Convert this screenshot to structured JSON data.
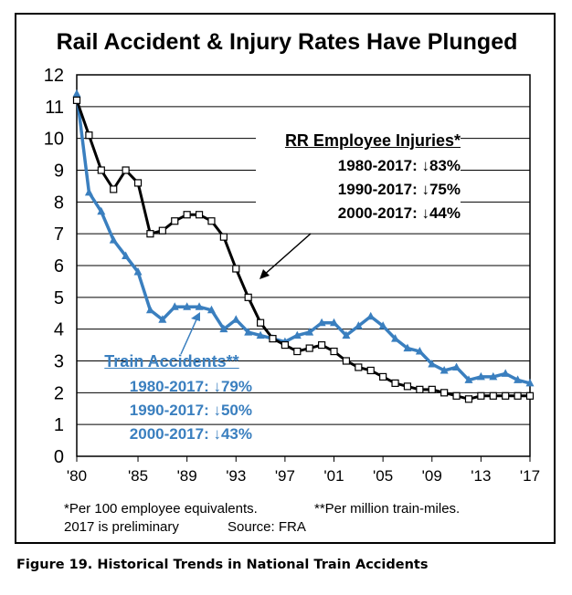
{
  "chart_data": {
    "type": "line",
    "title": "Rail Accident & Injury Rates Have Plunged",
    "xlabel": "",
    "ylabel": "",
    "xlim": [
      1980,
      2017
    ],
    "ylim": [
      0,
      12
    ],
    "y_ticks": [
      0,
      1,
      2,
      3,
      4,
      5,
      6,
      7,
      8,
      9,
      10,
      11,
      12
    ],
    "x_ticks": [
      {
        "value": 1980,
        "label": "'80"
      },
      {
        "value": 1985,
        "label": "'85"
      },
      {
        "value": 1989,
        "label": "'89"
      },
      {
        "value": 1993,
        "label": "'93"
      },
      {
        "value": 1997,
        "label": "'97"
      },
      {
        "value": 2001,
        "label": "'01"
      },
      {
        "value": 2005,
        "label": "'05"
      },
      {
        "value": 2009,
        "label": "'09"
      },
      {
        "value": 2013,
        "label": "'13"
      },
      {
        "value": 2017,
        "label": "'17"
      }
    ],
    "grid": true,
    "x": [
      1980,
      1981,
      1982,
      1983,
      1984,
      1985,
      1986,
      1987,
      1988,
      1989,
      1990,
      1991,
      1992,
      1993,
      1994,
      1995,
      1996,
      1997,
      1998,
      1999,
      2000,
      2001,
      2002,
      2003,
      2004,
      2005,
      2006,
      2007,
      2008,
      2009,
      2010,
      2011,
      2012,
      2013,
      2014,
      2015,
      2016,
      2017
    ],
    "series": [
      {
        "name": "RR Employee Injuries",
        "color": "#000000",
        "marker": "open-square",
        "values": [
          11.2,
          10.1,
          9.0,
          8.4,
          9.0,
          8.6,
          7.0,
          7.1,
          7.4,
          7.6,
          7.6,
          7.4,
          6.9,
          5.9,
          5.0,
          4.2,
          3.7,
          3.5,
          3.3,
          3.4,
          3.5,
          3.3,
          3.0,
          2.8,
          2.7,
          2.5,
          2.3,
          2.2,
          2.1,
          2.1,
          2.0,
          1.9,
          1.8,
          1.9,
          1.9,
          1.9,
          1.9,
          1.9
        ]
      },
      {
        "name": "Train Accidents",
        "color": "#3a7fbf",
        "marker": "triangle",
        "values": [
          11.4,
          8.3,
          7.7,
          6.8,
          6.3,
          5.8,
          4.6,
          4.3,
          4.7,
          4.7,
          4.7,
          4.6,
          4.0,
          4.3,
          3.9,
          3.8,
          3.7,
          3.6,
          3.8,
          3.9,
          4.2,
          4.2,
          3.8,
          4.1,
          4.4,
          4.1,
          3.7,
          3.4,
          3.3,
          2.9,
          2.7,
          2.8,
          2.4,
          2.5,
          2.5,
          2.6,
          2.4,
          2.3
        ]
      }
    ],
    "annotations": {
      "injuries": {
        "title": "RR Employee Injuries*",
        "lines": [
          "1980-2017: ↓83%",
          "1990-2017: ↓75%",
          "2000-2017: ↓44%"
        ]
      },
      "accidents": {
        "title": "Train Accidents**",
        "lines": [
          "1980-2017: ↓79%",
          "1990-2017: ↓50%",
          "2000-2017: ↓43%"
        ]
      }
    }
  },
  "footnotes": {
    "employee": "*Per 100 employee equivalents.",
    "miles": "**Per million train-miles.",
    "preliminary": "2017 is preliminary",
    "source": "Source: FRA"
  },
  "caption": "Figure 19. Historical Trends in National Train Accidents"
}
